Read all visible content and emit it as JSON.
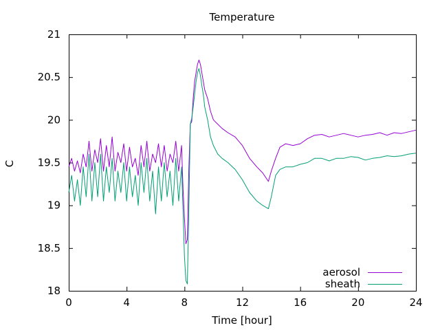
{
  "chart_data": {
    "type": "line",
    "title": "Temperature",
    "xlabel": "Time [hour]",
    "ylabel": "C",
    "xlim": [
      0,
      24
    ],
    "ylim": [
      18,
      21
    ],
    "xticks": [
      0,
      4,
      8,
      12,
      16,
      20,
      24
    ],
    "yticks": [
      18,
      18.5,
      19,
      19.5,
      20,
      20.5,
      21
    ],
    "xtick_labels": [
      "0",
      "4",
      "8",
      "12",
      "16",
      "20",
      "24"
    ],
    "ytick_labels": [
      "18",
      "18.5",
      "19",
      "19.5",
      "20",
      "20.5",
      "21"
    ],
    "grid": false,
    "legend_position": "bottom-right",
    "series": [
      {
        "name": "aerosol",
        "color": "#9400d3",
        "x": [
          0,
          0.2,
          0.4,
          0.6,
          0.8,
          1.0,
          1.2,
          1.4,
          1.6,
          1.8,
          2.0,
          2.2,
          2.4,
          2.6,
          2.8,
          3.0,
          3.2,
          3.4,
          3.6,
          3.8,
          4.0,
          4.2,
          4.4,
          4.6,
          4.8,
          5.0,
          5.2,
          5.4,
          5.6,
          5.8,
          6.0,
          6.2,
          6.4,
          6.6,
          6.8,
          7.0,
          7.2,
          7.4,
          7.6,
          7.8,
          7.9,
          8.0,
          8.1,
          8.2,
          8.3,
          8.4,
          8.5,
          8.6,
          8.7,
          8.8,
          8.9,
          9.0,
          9.1,
          9.2,
          9.3,
          9.4,
          9.6,
          9.8,
          10.0,
          10.3,
          10.6,
          11.0,
          11.5,
          12.0,
          12.5,
          13.0,
          13.4,
          13.8,
          14.0,
          14.3,
          14.6,
          15.0,
          15.5,
          16.0,
          16.5,
          17.0,
          17.5,
          18.0,
          18.5,
          19.0,
          19.5,
          20.0,
          20.5,
          21.0,
          21.5,
          22.0,
          22.5,
          23.0,
          23.5,
          24.0
        ],
        "y": [
          19.45,
          19.55,
          19.4,
          19.52,
          19.38,
          19.6,
          19.45,
          19.75,
          19.4,
          19.65,
          19.5,
          19.78,
          19.4,
          19.7,
          19.45,
          19.8,
          19.4,
          19.62,
          19.5,
          19.72,
          19.4,
          19.68,
          19.45,
          19.55,
          19.35,
          19.7,
          19.45,
          19.75,
          19.4,
          19.6,
          19.5,
          19.72,
          19.45,
          19.7,
          19.4,
          19.6,
          19.5,
          19.75,
          19.4,
          19.7,
          19.2,
          18.85,
          18.55,
          18.6,
          19.4,
          19.95,
          19.98,
          20.25,
          20.45,
          20.55,
          20.65,
          20.7,
          20.65,
          20.55,
          20.45,
          20.35,
          20.25,
          20.1,
          20.0,
          19.95,
          19.9,
          19.85,
          19.8,
          19.7,
          19.55,
          19.45,
          19.38,
          19.28,
          19.4,
          19.55,
          19.68,
          19.72,
          19.7,
          19.72,
          19.78,
          19.82,
          19.83,
          19.8,
          19.82,
          19.84,
          19.82,
          19.8,
          19.82,
          19.83,
          19.85,
          19.82,
          19.85,
          19.84,
          19.86,
          19.88
        ]
      },
      {
        "name": "sheath",
        "color": "#009e73",
        "x": [
          0,
          0.2,
          0.4,
          0.6,
          0.8,
          1.0,
          1.2,
          1.4,
          1.6,
          1.8,
          2.0,
          2.2,
          2.4,
          2.6,
          2.8,
          3.0,
          3.2,
          3.4,
          3.6,
          3.8,
          4.0,
          4.2,
          4.4,
          4.6,
          4.8,
          5.0,
          5.2,
          5.4,
          5.6,
          5.8,
          6.0,
          6.2,
          6.4,
          6.6,
          6.8,
          7.0,
          7.2,
          7.4,
          7.6,
          7.8,
          7.9,
          8.0,
          8.1,
          8.2,
          8.3,
          8.4,
          8.5,
          8.6,
          8.7,
          8.8,
          8.9,
          9.0,
          9.1,
          9.2,
          9.3,
          9.4,
          9.6,
          9.8,
          10.0,
          10.3,
          10.6,
          11.0,
          11.5,
          12.0,
          12.5,
          13.0,
          13.4,
          13.8,
          14.0,
          14.3,
          14.6,
          15.0,
          15.5,
          16.0,
          16.5,
          17.0,
          17.5,
          18.0,
          18.5,
          19.0,
          19.5,
          20.0,
          20.5,
          21.0,
          21.5,
          22.0,
          22.5,
          23.0,
          23.5,
          24.0
        ],
        "y": [
          19.15,
          19.35,
          19.05,
          19.3,
          19.0,
          19.45,
          19.1,
          19.6,
          19.05,
          19.5,
          19.1,
          19.6,
          19.05,
          19.45,
          19.15,
          19.55,
          19.05,
          19.4,
          19.15,
          19.5,
          19.05,
          19.45,
          19.1,
          19.35,
          19.0,
          19.5,
          19.15,
          19.55,
          19.05,
          19.4,
          18.9,
          19.45,
          19.05,
          19.5,
          19.1,
          19.4,
          19.0,
          19.55,
          19.05,
          19.45,
          18.95,
          18.4,
          18.12,
          18.08,
          18.9,
          19.95,
          20.02,
          20.15,
          20.3,
          20.45,
          20.55,
          20.6,
          20.52,
          20.4,
          20.3,
          20.15,
          20.0,
          19.8,
          19.7,
          19.6,
          19.55,
          19.5,
          19.42,
          19.3,
          19.15,
          19.05,
          19.0,
          18.96,
          19.1,
          19.35,
          19.42,
          19.45,
          19.45,
          19.48,
          19.5,
          19.55,
          19.55,
          19.52,
          19.55,
          19.55,
          19.57,
          19.56,
          19.53,
          19.55,
          19.56,
          19.58,
          19.57,
          19.58,
          19.6,
          19.61
        ]
      }
    ]
  }
}
